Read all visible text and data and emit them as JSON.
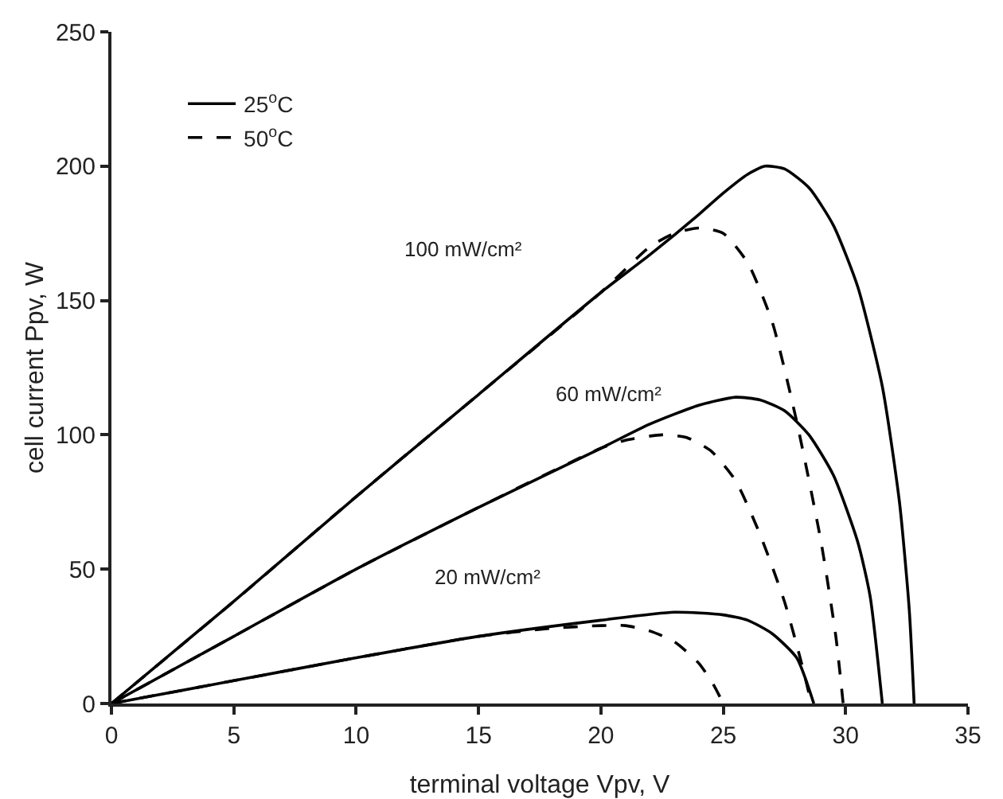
{
  "chart_data": {
    "type": "line",
    "xlabel": "terminal voltage Vpv, V",
    "ylabel": "cell current Ppv, W",
    "xlim": [
      0,
      35
    ],
    "xticks": [
      0,
      5,
      10,
      15,
      20,
      25,
      30,
      35
    ],
    "ylim": [
      0,
      250
    ],
    "yticks": [
      0,
      50,
      100,
      150,
      200,
      250
    ],
    "grid": false,
    "legend": "top left",
    "marker": "none",
    "series": [
      {
        "name": "25$^{o}$C",
        "color": "#000000",
        "line_style": "solid",
        "x": [
          0,
          5,
          10,
          15,
          20,
          22,
          24,
          25,
          26,
          26.7,
          27.5,
          28.5,
          29.5,
          30.5,
          31.5,
          32.2,
          32.6,
          32.8
        ],
        "values": [
          0,
          38,
          77,
          115,
          153,
          167,
          182,
          190,
          197,
          200,
          199,
          192,
          178,
          155,
          118,
          75,
          35,
          0
        ]
      },
      {
        "name": "50$^{o}$C",
        "color": "#000000",
        "line_style": "dashed",
        "x": [
          0,
          5,
          10,
          15,
          20,
          22,
          23,
          24,
          25,
          26,
          27,
          28,
          29,
          29.6,
          29.9
        ],
        "values": [
          0,
          38,
          77,
          115,
          153,
          170,
          175,
          177,
          175,
          164,
          142,
          105,
          60,
          25,
          0
        ]
      },
      {
        "color": "#000000",
        "line_style": "solid",
        "x": [
          0,
          5,
          10,
          15,
          20,
          22,
          24,
          25.5,
          26.5,
          27.5,
          28.5,
          29.5,
          30.5,
          31,
          31.5
        ],
        "values": [
          0,
          25,
          50,
          73,
          95,
          104,
          111,
          114,
          113,
          109,
          100,
          85,
          60,
          40,
          0
        ]
      },
      {
        "color": "#000000",
        "line_style": "dashed",
        "x": [
          0,
          5,
          10,
          15,
          20,
          21,
          22.5,
          23.5,
          24.5,
          25.5,
          26.5,
          27.5,
          28.2,
          28.6
        ],
        "values": [
          0,
          25,
          50,
          73,
          95,
          98,
          100,
          99,
          94,
          83,
          63,
          38,
          15,
          0
        ]
      },
      {
        "color": "#000000",
        "line_style": "solid",
        "x": [
          0,
          5,
          10,
          15,
          20,
          23,
          25,
          26,
          27,
          28,
          28.7
        ],
        "values": [
          0,
          8.5,
          17,
          25,
          31,
          34,
          33,
          31,
          26,
          17,
          0
        ]
      },
      {
        "color": "#000000",
        "line_style": "dashed",
        "x": [
          0,
          5,
          10,
          15,
          18,
          20,
          21,
          22,
          23,
          24,
          24.6,
          25
        ],
        "values": [
          0,
          8.5,
          17,
          25,
          28,
          29,
          29,
          27,
          23,
          15,
          7,
          0
        ]
      }
    ],
    "annotations": [
      "100 mW/cm²",
      "60 mW/cm²",
      "20 mW/cm²"
    ]
  }
}
